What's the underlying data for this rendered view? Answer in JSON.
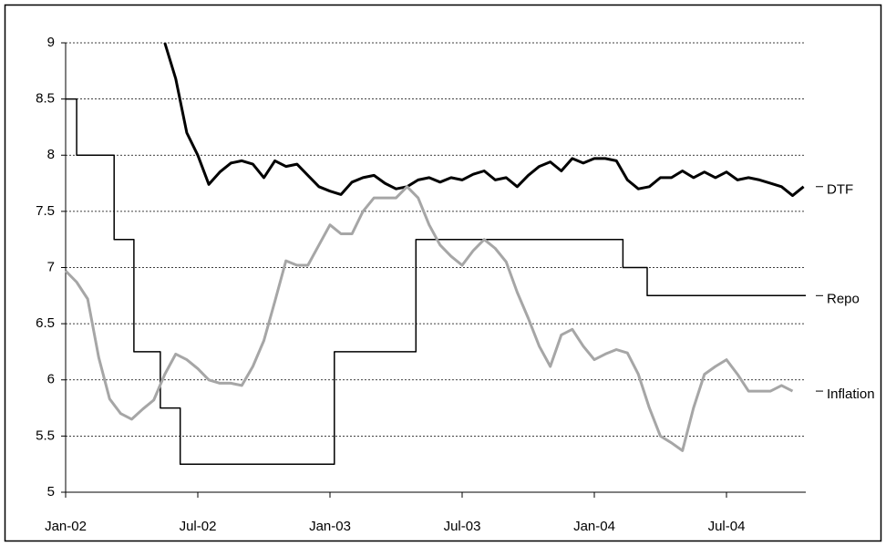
{
  "chart_data": {
    "type": "line",
    "xlim": [
      0,
      33.6
    ],
    "xticks": [
      {
        "value": 0,
        "label": "Jan-02"
      },
      {
        "value": 6,
        "label": "Jul-02"
      },
      {
        "value": 12,
        "label": "Jan-03"
      },
      {
        "value": 18,
        "label": "Jul-03"
      },
      {
        "value": 24,
        "label": "Jan-04"
      },
      {
        "value": 30,
        "label": "Jul-04"
      }
    ],
    "ylim": [
      5,
      9
    ],
    "yticks": [
      5,
      5.5,
      6,
      6.5,
      7,
      7.5,
      8,
      8.5,
      9
    ],
    "grid": true,
    "series": [
      {
        "name": "DTF",
        "color": "#000000",
        "width": 3,
        "x": [
          4.5,
          5,
          5.5,
          6,
          6.5,
          7,
          7.5,
          8,
          8.5,
          9,
          9.5,
          10,
          10.5,
          11,
          11.5,
          12,
          12.5,
          13,
          13.5,
          14,
          14.5,
          15,
          15.5,
          16,
          16.5,
          17,
          17.5,
          18,
          18.5,
          19,
          19.5,
          20,
          20.5,
          21,
          21.5,
          22,
          22.5,
          23,
          23.5,
          24,
          24.5,
          25,
          25.5,
          26,
          26.5,
          27,
          27.5,
          28,
          28.5,
          29,
          29.5,
          30,
          30.5,
          31,
          31.5,
          32,
          32.5,
          33,
          33.5
        ],
        "values": [
          9.0,
          8.68,
          8.2,
          8.0,
          7.74,
          7.85,
          7.93,
          7.95,
          7.92,
          7.8,
          7.95,
          7.9,
          7.92,
          7.82,
          7.72,
          7.68,
          7.65,
          7.76,
          7.8,
          7.82,
          7.75,
          7.7,
          7.72,
          7.78,
          7.8,
          7.76,
          7.8,
          7.78,
          7.83,
          7.86,
          7.78,
          7.8,
          7.72,
          7.82,
          7.9,
          7.94,
          7.86,
          7.97,
          7.93,
          7.97,
          7.97,
          7.95,
          7.78,
          7.7,
          7.72,
          7.8,
          7.8,
          7.86,
          7.8,
          7.85,
          7.8,
          7.85,
          7.78,
          7.8,
          7.78,
          7.75,
          7.72,
          7.64,
          7.72
        ]
      },
      {
        "name": "Repo",
        "color": "#000000",
        "width": 1.5,
        "x": [
          0,
          0.5,
          0.5,
          2.2,
          2.2,
          3.1,
          3.1,
          4.3,
          4.3,
          5.2,
          5.2,
          12.2,
          12.2,
          15.9,
          15.9,
          25.3,
          25.3,
          26.4,
          26.4,
          33.6
        ],
        "values": [
          8.5,
          8.5,
          8,
          8,
          7.25,
          7.25,
          6.25,
          6.25,
          5.75,
          5.75,
          5.25,
          5.25,
          6.25,
          6.25,
          7.25,
          7.25,
          7,
          7,
          6.75,
          6.75
        ]
      },
      {
        "name": "Inflation",
        "color": "#a6a6a6",
        "width": 3,
        "x": [
          0,
          0.5,
          1,
          1.5,
          2,
          2.5,
          3,
          3.5,
          4,
          4.5,
          5,
          5.5,
          6,
          6.5,
          7,
          7.5,
          8,
          8.5,
          9,
          9.5,
          10,
          10.5,
          11,
          11.5,
          12,
          12.5,
          13,
          13.5,
          14,
          14.5,
          15,
          15.5,
          16,
          16.5,
          17,
          17.5,
          18,
          18.5,
          19,
          19.5,
          20,
          20.5,
          21,
          21.5,
          22,
          22.5,
          23,
          23.5,
          24,
          24.5,
          25,
          25.5,
          26,
          26.5,
          27,
          27.5,
          28,
          28.5,
          29,
          29.5,
          30,
          30.5,
          31,
          31.5,
          32,
          32.5,
          33
        ],
        "values": [
          6.97,
          6.87,
          6.72,
          6.2,
          5.83,
          5.7,
          5.65,
          5.74,
          5.82,
          6.05,
          6.23,
          6.18,
          6.1,
          6.0,
          5.97,
          5.97,
          5.95,
          6.12,
          6.35,
          6.7,
          7.06,
          7.02,
          7.02,
          7.2,
          7.38,
          7.3,
          7.3,
          7.5,
          7.62,
          7.62,
          7.62,
          7.72,
          7.62,
          7.38,
          7.2,
          7.1,
          7.02,
          7.15,
          7.25,
          7.17,
          7.05,
          6.78,
          6.55,
          6.3,
          6.12,
          6.4,
          6.45,
          6.3,
          6.18,
          6.23,
          6.27,
          6.24,
          6.05,
          5.75,
          5.5,
          5.44,
          5.37,
          5.75,
          6.05,
          6.12,
          6.18,
          6.05,
          5.9,
          5.9,
          5.9,
          5.95,
          5.9
        ]
      }
    ]
  }
}
